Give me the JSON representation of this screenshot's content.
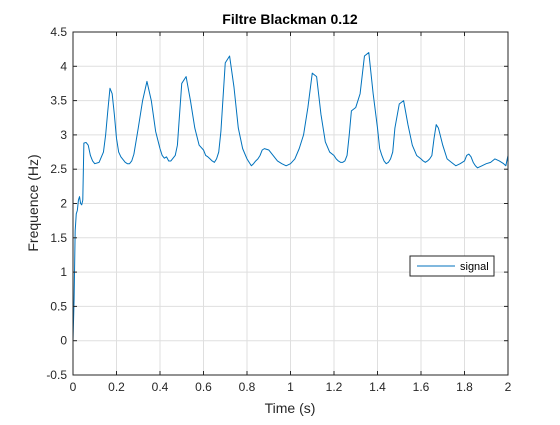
{
  "chart_data": {
    "type": "line",
    "title": "Filtre Blackman 0.12",
    "xlabel": "Time (s)",
    "ylabel": "Frequence (Hz)",
    "xlim": [
      0,
      2
    ],
    "ylim": [
      -0.5,
      4.5
    ],
    "xticks": [
      0,
      0.2,
      0.4,
      0.6,
      0.8,
      1,
      1.2,
      1.4,
      1.6,
      1.8,
      2
    ],
    "xtick_labels": [
      "0",
      "0.2",
      "0.4",
      "0.6",
      "0.8",
      "1",
      "1.2",
      "1.4",
      "1.6",
      "1.8",
      "2"
    ],
    "yticks": [
      -0.5,
      0,
      0.5,
      1,
      1.5,
      2,
      2.5,
      3,
      3.5,
      4,
      4.5
    ],
    "ytick_labels": [
      "-0.5",
      "0",
      "0.5",
      "1",
      "1.5",
      "2",
      "2.5",
      "3",
      "3.5",
      "4",
      "4.5"
    ],
    "grid": true,
    "legend_position": "right",
    "series": [
      {
        "name": "signal",
        "color": "#0072bd",
        "x": [
          0,
          0.005,
          0.01,
          0.015,
          0.02,
          0.025,
          0.03,
          0.035,
          0.04,
          0.045,
          0.05,
          0.06,
          0.07,
          0.08,
          0.09,
          0.1,
          0.12,
          0.14,
          0.15,
          0.16,
          0.17,
          0.18,
          0.19,
          0.2,
          0.21,
          0.22,
          0.23,
          0.24,
          0.25,
          0.26,
          0.27,
          0.28,
          0.3,
          0.32,
          0.34,
          0.36,
          0.38,
          0.4,
          0.41,
          0.42,
          0.43,
          0.44,
          0.45,
          0.46,
          0.47,
          0.48,
          0.49,
          0.5,
          0.52,
          0.54,
          0.56,
          0.58,
          0.6,
          0.61,
          0.62,
          0.63,
          0.64,
          0.65,
          0.66,
          0.67,
          0.68,
          0.69,
          0.7,
          0.72,
          0.74,
          0.76,
          0.78,
          0.8,
          0.81,
          0.82,
          0.83,
          0.84,
          0.85,
          0.86,
          0.87,
          0.88,
          0.9,
          0.92,
          0.94,
          0.96,
          0.98,
          1.0,
          1.02,
          1.04,
          1.06,
          1.08,
          1.1,
          1.12,
          1.14,
          1.16,
          1.18,
          1.2,
          1.21,
          1.22,
          1.23,
          1.24,
          1.25,
          1.26,
          1.27,
          1.28,
          1.3,
          1.32,
          1.34,
          1.36,
          1.38,
          1.4,
          1.41,
          1.42,
          1.43,
          1.44,
          1.45,
          1.46,
          1.47,
          1.48,
          1.5,
          1.52,
          1.54,
          1.56,
          1.58,
          1.6,
          1.61,
          1.62,
          1.63,
          1.64,
          1.65,
          1.66,
          1.67,
          1.68,
          1.7,
          1.72,
          1.74,
          1.76,
          1.78,
          1.8,
          1.81,
          1.82,
          1.83,
          1.84,
          1.85,
          1.86,
          1.88,
          1.9,
          1.92,
          1.94,
          1.96,
          1.98,
          1.99,
          2.0
        ],
        "values": [
          0,
          0.6,
          1.6,
          1.85,
          1.9,
          2.05,
          2.1,
          2.0,
          1.98,
          2.05,
          2.88,
          2.89,
          2.85,
          2.7,
          2.62,
          2.58,
          2.6,
          2.75,
          3.0,
          3.35,
          3.68,
          3.6,
          3.3,
          2.95,
          2.75,
          2.68,
          2.64,
          2.6,
          2.58,
          2.58,
          2.62,
          2.72,
          3.1,
          3.5,
          3.78,
          3.5,
          3.05,
          2.8,
          2.7,
          2.66,
          2.68,
          2.62,
          2.62,
          2.66,
          2.7,
          2.85,
          3.3,
          3.75,
          3.85,
          3.5,
          3.1,
          2.85,
          2.78,
          2.7,
          2.68,
          2.65,
          2.62,
          2.6,
          2.65,
          2.75,
          3.05,
          3.55,
          4.05,
          4.15,
          3.7,
          3.1,
          2.8,
          2.65,
          2.6,
          2.55,
          2.58,
          2.62,
          2.65,
          2.7,
          2.78,
          2.8,
          2.78,
          2.7,
          2.62,
          2.58,
          2.55,
          2.58,
          2.65,
          2.8,
          3.0,
          3.4,
          3.9,
          3.85,
          3.3,
          2.9,
          2.75,
          2.7,
          2.65,
          2.62,
          2.6,
          2.6,
          2.62,
          2.7,
          3.0,
          3.35,
          3.4,
          3.6,
          4.15,
          4.2,
          3.6,
          3.1,
          2.8,
          2.7,
          2.62,
          2.58,
          2.6,
          2.65,
          2.75,
          3.1,
          3.45,
          3.5,
          3.15,
          2.85,
          2.7,
          2.65,
          2.62,
          2.6,
          2.62,
          2.65,
          2.7,
          2.95,
          3.15,
          3.1,
          2.85,
          2.65,
          2.6,
          2.55,
          2.58,
          2.62,
          2.7,
          2.72,
          2.68,
          2.6,
          2.55,
          2.52,
          2.55,
          2.58,
          2.6,
          2.65,
          2.62,
          2.58,
          2.55,
          2.7
        ]
      }
    ]
  }
}
